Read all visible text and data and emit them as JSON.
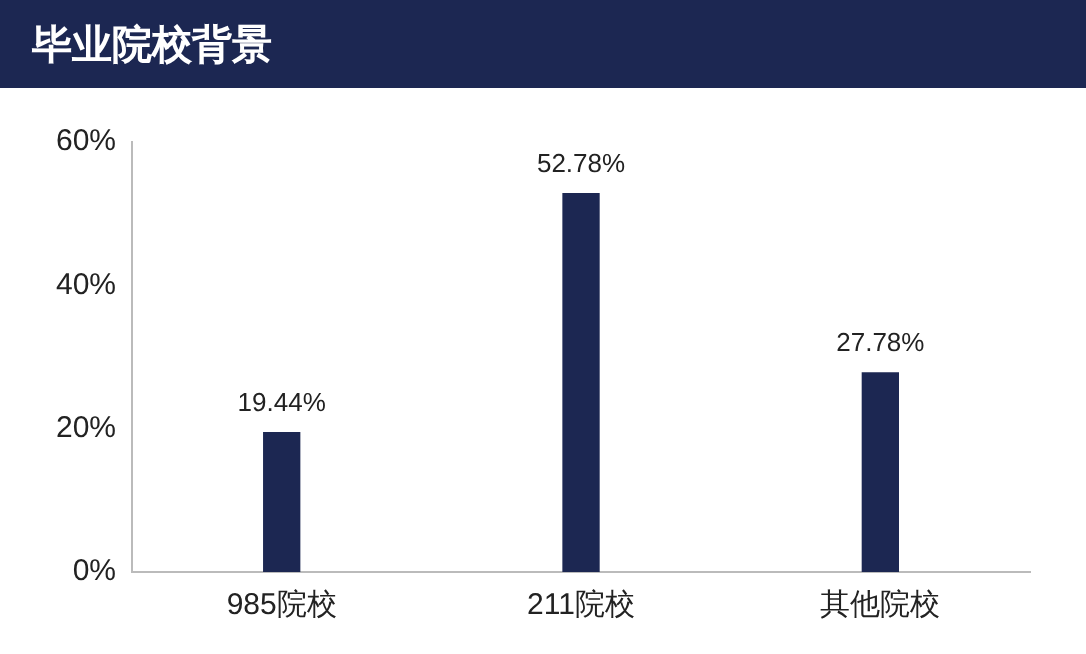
{
  "chart_data": {
    "type": "bar",
    "title": "毕业院校背景",
    "categories": [
      "985院校",
      "211院校",
      "其他院校"
    ],
    "values": [
      19.44,
      52.78,
      27.78
    ],
    "value_labels": [
      "19.44%",
      "52.78%",
      "27.78%"
    ],
    "color": "#1c2752",
    "ylim": [
      0,
      60
    ],
    "yticks": [
      {
        "value": 0,
        "label": "0%"
      },
      {
        "value": 20,
        "label": "20%"
      },
      {
        "value": 40,
        "label": "40%"
      },
      {
        "value": 60,
        "label": "60%"
      }
    ],
    "grid": false,
    "legend": false
  }
}
